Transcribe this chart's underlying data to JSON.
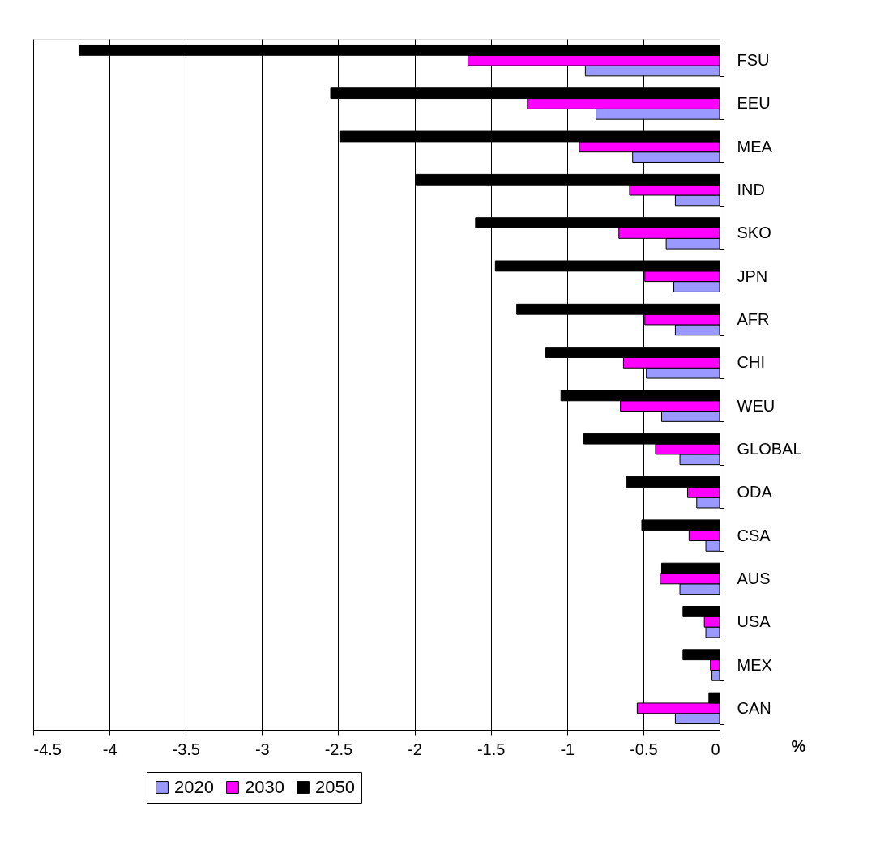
{
  "chart_data": {
    "type": "bar",
    "orientation": "horizontal",
    "xlabel": "%",
    "categories": [
      "FSU",
      "EEU",
      "MEA",
      "IND",
      "SKO",
      "JPN",
      "AFR",
      "CHI",
      "WEU",
      "GLOBAL",
      "ODA",
      "CSA",
      "AUS",
      "USA",
      "MEX",
      "CAN"
    ],
    "series": [
      {
        "name": "2020",
        "color": "#9999ff",
        "values": [
          -0.88,
          -0.81,
          -0.57,
          -0.29,
          -0.35,
          -0.3,
          -0.29,
          -0.48,
          -0.38,
          -0.26,
          -0.15,
          -0.09,
          -0.26,
          -0.09,
          -0.05,
          -0.29
        ]
      },
      {
        "name": "2030",
        "color": "#ff00ff",
        "values": [
          -1.65,
          -1.26,
          -0.92,
          -0.59,
          -0.66,
          -0.49,
          -0.49,
          -0.63,
          -0.65,
          -0.42,
          -0.21,
          -0.2,
          -0.39,
          -0.1,
          -0.06,
          -0.54
        ]
      },
      {
        "name": "2050",
        "color": "#000000",
        "values": [
          -4.2,
          -2.55,
          -2.49,
          -1.99,
          -1.6,
          -1.47,
          -1.33,
          -1.14,
          -1.04,
          -0.89,
          -0.61,
          -0.51,
          -0.38,
          -0.24,
          -0.24,
          -0.07
        ]
      }
    ],
    "xlim": [
      -4.5,
      0
    ],
    "xticks": [
      {
        "value": -4.5,
        "label": "-4.5"
      },
      {
        "value": -4,
        "label": "-4"
      },
      {
        "value": -3.5,
        "label": "-3.5"
      },
      {
        "value": -3,
        "label": "-3"
      },
      {
        "value": -2.5,
        "label": "-2.5"
      },
      {
        "value": -2,
        "label": "-2"
      },
      {
        "value": -1.5,
        "label": "-1.5"
      },
      {
        "value": -1,
        "label": "-1"
      },
      {
        "value": -0.5,
        "label": "-0.5"
      },
      {
        "value": 0,
        "label": "0"
      }
    ],
    "grid": "x",
    "legend": "bottom"
  }
}
